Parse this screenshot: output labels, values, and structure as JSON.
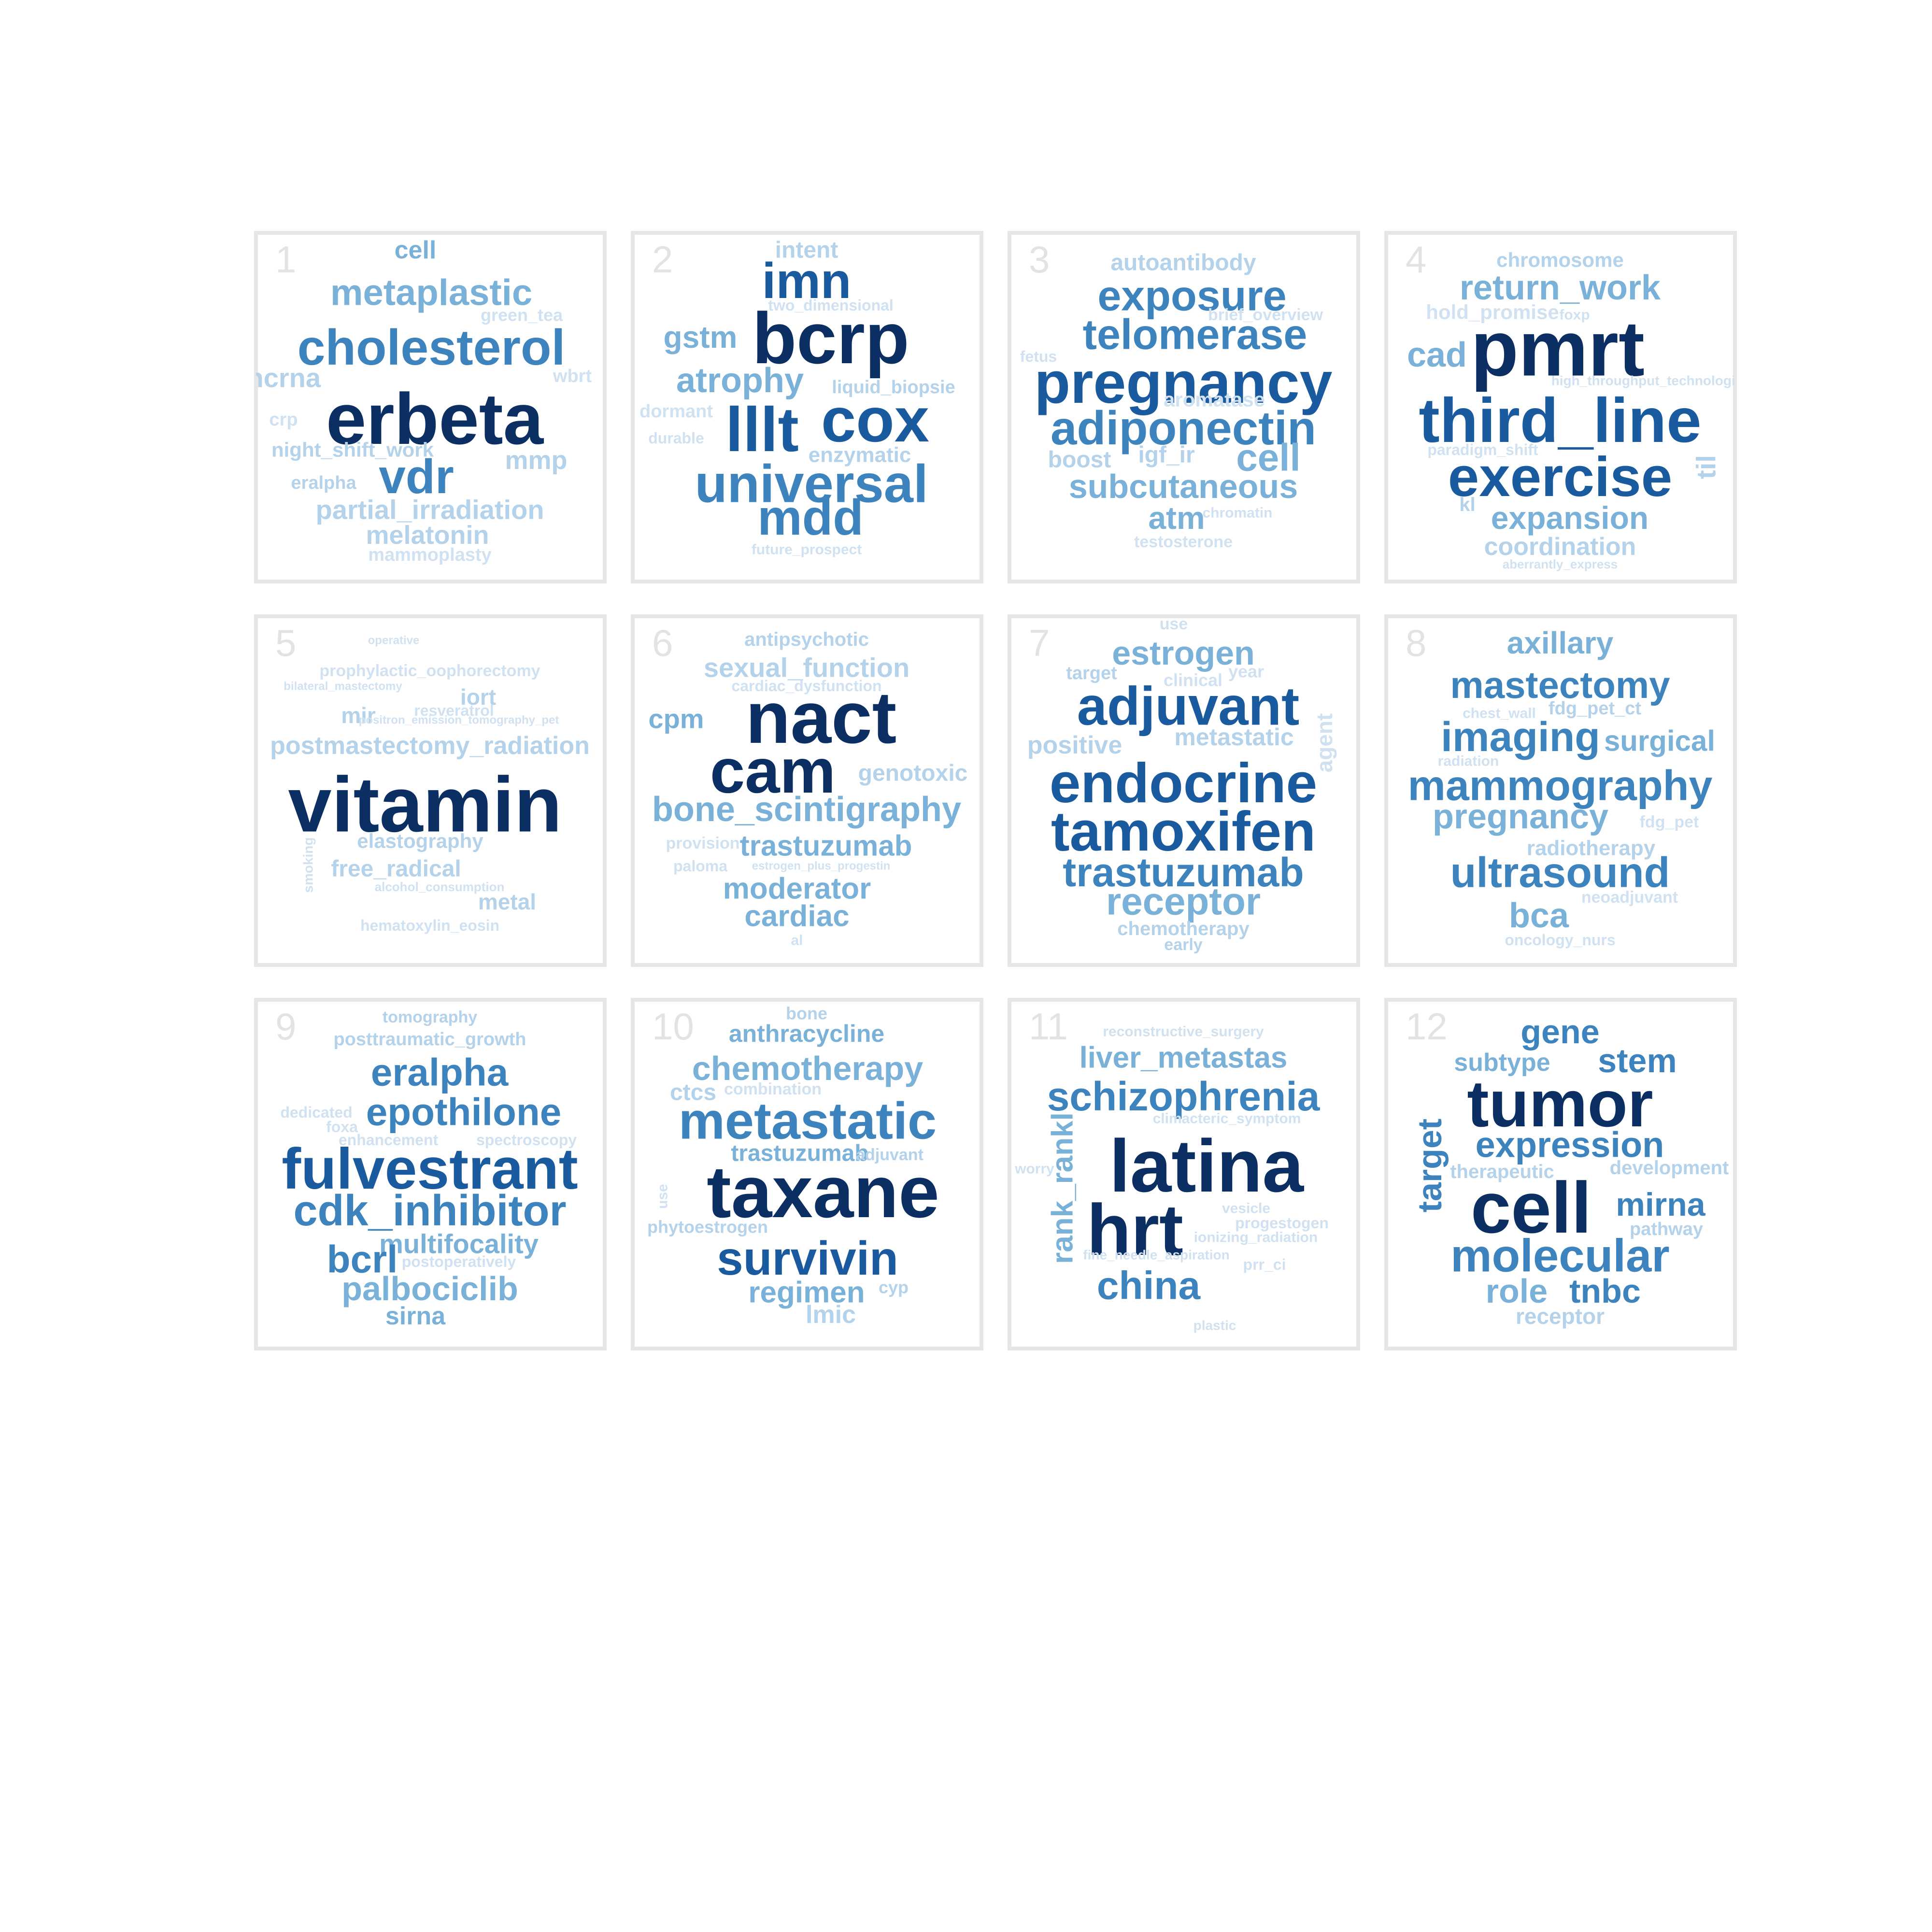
{
  "palette": {
    "tier5": "#0b2f63",
    "tier4": "#1a5a9e",
    "tier3": "#3d83be",
    "tier2": "#79b1d8",
    "tier1": "#b4d2ea",
    "tier0": "#d0e2f2",
    "frame": "#e6e6e6",
    "number": "#e3e3e3"
  },
  "panels": [
    {
      "number": "1",
      "words": [
        {
          "text": "cell",
          "level": 2
        },
        {
          "text": "metaplastic",
          "level": 2
        },
        {
          "text": "green_tea",
          "level": 0
        },
        {
          "text": "cholesterol",
          "level": 3
        },
        {
          "text": "lncrna",
          "level": 1
        },
        {
          "text": "wbrt",
          "level": 0
        },
        {
          "text": "erbeta",
          "level": 5
        },
        {
          "text": "crp",
          "level": 0
        },
        {
          "text": "night_shift_work",
          "level": 1
        },
        {
          "text": "mmp",
          "level": 1
        },
        {
          "text": "eralpha",
          "level": 1
        },
        {
          "text": "vdr",
          "level": 3
        },
        {
          "text": "partial_irradiation",
          "level": 1
        },
        {
          "text": "melatonin",
          "level": 1
        },
        {
          "text": "mammoplasty",
          "level": 0
        }
      ]
    },
    {
      "number": "2",
      "words": [
        {
          "text": "intent",
          "level": 1
        },
        {
          "text": "imn",
          "level": 4
        },
        {
          "text": "two_dimensional",
          "level": 0
        },
        {
          "text": "gstm",
          "level": 2
        },
        {
          "text": "bcrp",
          "level": 5
        },
        {
          "text": "atrophy",
          "level": 2
        },
        {
          "text": "liquid_biopsie",
          "level": 1
        },
        {
          "text": "dormant",
          "level": 0
        },
        {
          "text": "cox",
          "level": 4
        },
        {
          "text": "lllt",
          "level": 4
        },
        {
          "text": "durable",
          "level": 0
        },
        {
          "text": "enzymatic",
          "level": 1
        },
        {
          "text": "universal",
          "level": 3
        },
        {
          "text": "mdd",
          "level": 3
        },
        {
          "text": "future_prospect",
          "level": 0
        }
      ]
    },
    {
      "number": "3",
      "words": [
        {
          "text": "autoantibody",
          "level": 1
        },
        {
          "text": "exposure",
          "level": 3
        },
        {
          "text": "brief_overview",
          "level": 0
        },
        {
          "text": "telomerase",
          "level": 3
        },
        {
          "text": "fetus",
          "level": 0
        },
        {
          "text": "pregnancy",
          "level": 4
        },
        {
          "text": "aromatase",
          "level": 0
        },
        {
          "text": "adiponectin",
          "level": 3
        },
        {
          "text": "boost",
          "level": 1
        },
        {
          "text": "igf_ir",
          "level": 1
        },
        {
          "text": "cell",
          "level": 2
        },
        {
          "text": "subcutaneous",
          "level": 2
        },
        {
          "text": "atm",
          "level": 2
        },
        {
          "text": "chromatin",
          "level": 0
        },
        {
          "text": "testosterone",
          "level": 0
        }
      ]
    },
    {
      "number": "4",
      "words": [
        {
          "text": "chromosome",
          "level": 1
        },
        {
          "text": "return_work",
          "level": 2
        },
        {
          "text": "hold_promise",
          "level": 0
        },
        {
          "text": "foxp",
          "level": 0
        },
        {
          "text": "cad",
          "level": 2
        },
        {
          "text": "pmrt",
          "level": 5
        },
        {
          "text": "high_throughput_technologie",
          "level": 0
        },
        {
          "text": "third_line",
          "level": 4
        },
        {
          "text": "paradigm_shift",
          "level": 0
        },
        {
          "text": "exercise",
          "level": 4
        },
        {
          "text": "til",
          "level": 1
        },
        {
          "text": "kl",
          "level": 1
        },
        {
          "text": "expansion",
          "level": 2
        },
        {
          "text": "coordination",
          "level": 1
        },
        {
          "text": "aberrantly_express",
          "level": 0
        }
      ]
    },
    {
      "number": "5",
      "words": [
        {
          "text": "operative",
          "level": 0
        },
        {
          "text": "prophylactic_oophorectomy",
          "level": 0
        },
        {
          "text": "bilateral_mastectomy",
          "level": 0
        },
        {
          "text": "iort",
          "level": 1
        },
        {
          "text": "resveratrol",
          "level": 0
        },
        {
          "text": "mir",
          "level": 1
        },
        {
          "text": "positron_emission_tomography_pet",
          "level": 0
        },
        {
          "text": "postmastectomy_radiation",
          "level": 1
        },
        {
          "text": "vitamin",
          "level": 5
        },
        {
          "text": "smoking",
          "level": 0
        },
        {
          "text": "elastography",
          "level": 1
        },
        {
          "text": "free_radical",
          "level": 1
        },
        {
          "text": "alcohol_consumption",
          "level": 0
        },
        {
          "text": "metal",
          "level": 1
        },
        {
          "text": "hematoxylin_eosin",
          "level": 0
        }
      ]
    },
    {
      "number": "6",
      "words": [
        {
          "text": "antipsychotic",
          "level": 1
        },
        {
          "text": "sexual_function",
          "level": 1
        },
        {
          "text": "cardiac_dysfunction",
          "level": 0
        },
        {
          "text": "cpm",
          "level": 2
        },
        {
          "text": "nact",
          "level": 5
        },
        {
          "text": "cam",
          "level": 5
        },
        {
          "text": "genotoxic",
          "level": 1
        },
        {
          "text": "bone_scintigraphy",
          "level": 2
        },
        {
          "text": "provision",
          "level": 0
        },
        {
          "text": "trastuzumab",
          "level": 2
        },
        {
          "text": "paloma",
          "level": 0
        },
        {
          "text": "estrogen_plus_progestin",
          "level": 0
        },
        {
          "text": "moderator",
          "level": 2
        },
        {
          "text": "cardiac",
          "level": 2
        },
        {
          "text": "al",
          "level": 0
        }
      ]
    },
    {
      "number": "7",
      "words": [
        {
          "text": "use",
          "level": 0
        },
        {
          "text": "estrogen",
          "level": 2
        },
        {
          "text": "target",
          "level": 1
        },
        {
          "text": "clinical",
          "level": 0
        },
        {
          "text": "year",
          "level": 0
        },
        {
          "text": "adjuvant",
          "level": 4
        },
        {
          "text": "positive",
          "level": 1
        },
        {
          "text": "metastatic",
          "level": 1
        },
        {
          "text": "agent",
          "level": 0
        },
        {
          "text": "endocrine",
          "level": 4
        },
        {
          "text": "tamoxifen",
          "level": 4
        },
        {
          "text": "trastuzumab",
          "level": 3
        },
        {
          "text": "receptor",
          "level": 2
        },
        {
          "text": "chemotherapy",
          "level": 1
        },
        {
          "text": "early",
          "level": 1
        }
      ]
    },
    {
      "number": "8",
      "words": [
        {
          "text": "axillary",
          "level": 2
        },
        {
          "text": "mastectomy",
          "level": 3
        },
        {
          "text": "chest_wall",
          "level": 0
        },
        {
          "text": "fdg_pet_ct",
          "level": 1
        },
        {
          "text": "imaging",
          "level": 3
        },
        {
          "text": "surgical",
          "level": 2
        },
        {
          "text": "radiation",
          "level": 0
        },
        {
          "text": "mammography",
          "level": 3
        },
        {
          "text": "pregnancy",
          "level": 2
        },
        {
          "text": "fdg_pet",
          "level": 0
        },
        {
          "text": "radiotherapy",
          "level": 1
        },
        {
          "text": "ultrasound",
          "level": 3
        },
        {
          "text": "neoadjuvant",
          "level": 0
        },
        {
          "text": "bca",
          "level": 2
        },
        {
          "text": "oncology_nurs",
          "level": 0
        }
      ]
    },
    {
      "number": "9",
      "words": [
        {
          "text": "tomography",
          "level": 1
        },
        {
          "text": "posttraumatic_growth",
          "level": 1
        },
        {
          "text": "eralpha",
          "level": 3
        },
        {
          "text": "dedicated",
          "level": 0
        },
        {
          "text": "epothilone",
          "level": 3
        },
        {
          "text": "foxa",
          "level": 0
        },
        {
          "text": "enhancement",
          "level": 0
        },
        {
          "text": "spectroscopy",
          "level": 0
        },
        {
          "text": "fulvestrant",
          "level": 4
        },
        {
          "text": "cdk_inhibitor",
          "level": 3
        },
        {
          "text": "multifocality",
          "level": 2
        },
        {
          "text": "bcrl",
          "level": 3
        },
        {
          "text": "postoperatively",
          "level": 0
        },
        {
          "text": "palbociclib",
          "level": 2
        },
        {
          "text": "sirna",
          "level": 2
        }
      ]
    },
    {
      "number": "10",
      "words": [
        {
          "text": "bone",
          "level": 1
        },
        {
          "text": "anthracycline",
          "level": 2
        },
        {
          "text": "chemotherapy",
          "level": 2
        },
        {
          "text": "ctcs",
          "level": 1
        },
        {
          "text": "combination",
          "level": 0
        },
        {
          "text": "metastatic",
          "level": 3
        },
        {
          "text": "trastuzumab",
          "level": 2
        },
        {
          "text": "adjuvant",
          "level": 1
        },
        {
          "text": "use",
          "level": 0
        },
        {
          "text": "taxane",
          "level": 5
        },
        {
          "text": "phytoestrogen",
          "level": 1
        },
        {
          "text": "survivin",
          "level": 4
        },
        {
          "text": "regimen",
          "level": 2
        },
        {
          "text": "cyp",
          "level": 1
        },
        {
          "text": "lmic",
          "level": 1
        }
      ]
    },
    {
      "number": "11",
      "words": [
        {
          "text": "reconstructive_surgery",
          "level": 0
        },
        {
          "text": "liver_metastas",
          "level": 2
        },
        {
          "text": "schizophrenia",
          "level": 3
        },
        {
          "text": "climacteric_symptom",
          "level": 0
        },
        {
          "text": "rank_rankl",
          "level": 2
        },
        {
          "text": "worry",
          "level": 0
        },
        {
          "text": "latina",
          "level": 5
        },
        {
          "text": "hrt",
          "level": 5
        },
        {
          "text": "vesicle",
          "level": 0
        },
        {
          "text": "progestogen",
          "level": 0
        },
        {
          "text": "ionizing_radiation",
          "level": 0
        },
        {
          "text": "fine_needle_aspiration",
          "level": 0
        },
        {
          "text": "prr_ci",
          "level": 0
        },
        {
          "text": "china",
          "level": 3
        },
        {
          "text": "plastic",
          "level": 0
        }
      ]
    },
    {
      "number": "12",
      "words": [
        {
          "text": "gene",
          "level": 3
        },
        {
          "text": "subtype",
          "level": 2
        },
        {
          "text": "stem",
          "level": 3
        },
        {
          "text": "tumor",
          "level": 5
        },
        {
          "text": "target",
          "level": 3
        },
        {
          "text": "expression",
          "level": 3
        },
        {
          "text": "therapeutic",
          "level": 1
        },
        {
          "text": "development",
          "level": 1
        },
        {
          "text": "cell",
          "level": 5
        },
        {
          "text": "mirna",
          "level": 3
        },
        {
          "text": "pathway",
          "level": 1
        },
        {
          "text": "molecular",
          "level": 3
        },
        {
          "text": "role",
          "level": 2
        },
        {
          "text": "tnbc",
          "level": 3
        },
        {
          "text": "receptor",
          "level": 1
        }
      ]
    }
  ]
}
